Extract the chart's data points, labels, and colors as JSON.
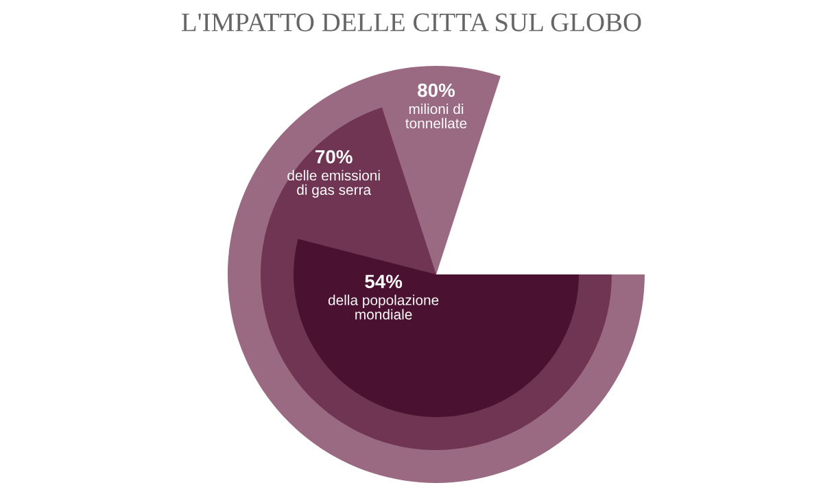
{
  "chart_data": {
    "type": "other",
    "title": "L'IMPATTO DELLE CITTA SUL GLOBO",
    "categories": [
      "milioni di\ntonnellate",
      "delle emissioni\ndi gas serra",
      "della popolazione\nmondiale"
    ],
    "values": [
      80,
      70,
      54
    ],
    "value_labels": [
      "80%",
      "70%",
      "54%"
    ],
    "colors": [
      "#9a6a83",
      "#6f3553",
      "#4b1130"
    ]
  }
}
